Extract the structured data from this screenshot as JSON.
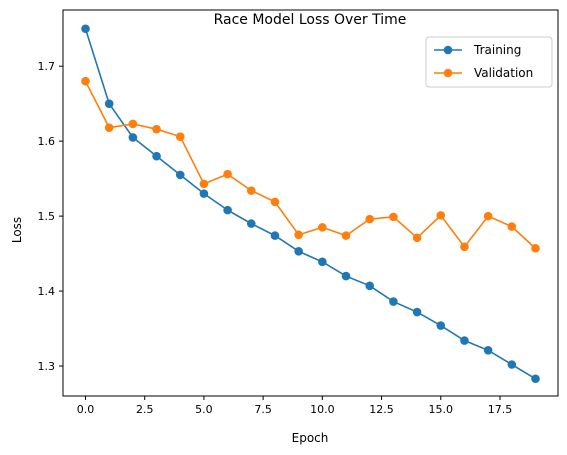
{
  "chart_data": {
    "type": "line",
    "title": "Race Model Loss Over Time",
    "xlabel": "Epoch",
    "ylabel": "Loss",
    "xlim": [
      -0.95,
      19.95
    ],
    "ylim": [
      1.26,
      1.775
    ],
    "xticks": [
      0.0,
      2.5,
      5.0,
      7.5,
      10.0,
      12.5,
      15.0,
      17.5
    ],
    "xtick_labels": [
      "0.0",
      "2.5",
      "5.0",
      "7.5",
      "10.0",
      "12.5",
      "15.0",
      "17.5"
    ],
    "yticks": [
      1.3,
      1.4,
      1.5,
      1.6,
      1.7
    ],
    "ytick_labels": [
      "1.3",
      "1.4",
      "1.5",
      "1.6",
      "1.7"
    ],
    "grid": false,
    "legend_position": "top-right",
    "x": [
      0,
      1,
      2,
      3,
      4,
      5,
      6,
      7,
      8,
      9,
      10,
      11,
      12,
      13,
      14,
      15,
      16,
      17,
      18,
      19
    ],
    "series": [
      {
        "name": "Training",
        "color": "#1f77b4",
        "marker": "circle",
        "values": [
          1.75,
          1.65,
          1.605,
          1.58,
          1.555,
          1.53,
          1.508,
          1.49,
          1.474,
          1.453,
          1.439,
          1.42,
          1.407,
          1.386,
          1.372,
          1.354,
          1.334,
          1.321,
          1.302,
          1.283
        ]
      },
      {
        "name": "Validation",
        "color": "#ff7f0e",
        "marker": "circle",
        "values": [
          1.68,
          1.618,
          1.623,
          1.616,
          1.606,
          1.543,
          1.556,
          1.534,
          1.519,
          1.475,
          1.485,
          1.474,
          1.496,
          1.499,
          1.471,
          1.501,
          1.459,
          1.5,
          1.486,
          1.457
        ]
      }
    ]
  }
}
